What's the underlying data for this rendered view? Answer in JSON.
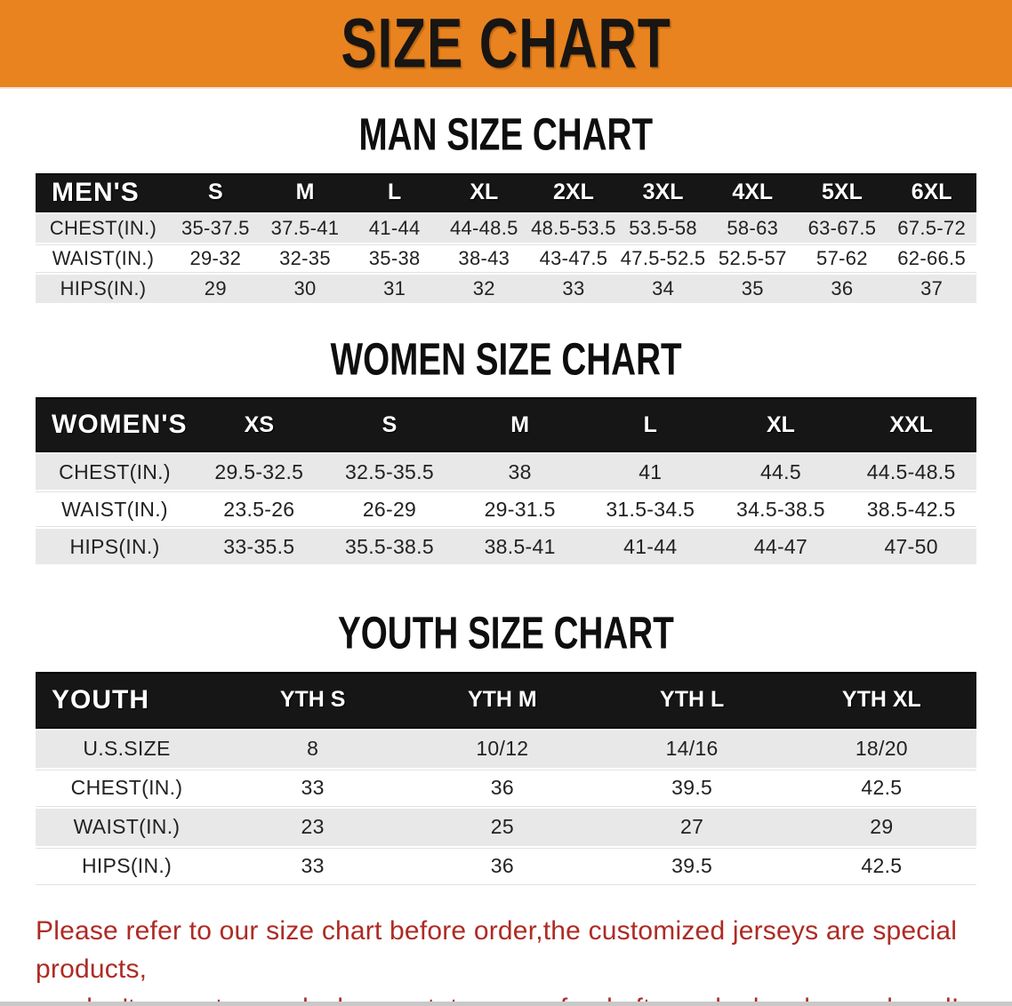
{
  "banner": {
    "title": "SIZE CHART",
    "bg_color": "#E8831F",
    "text_color": "#181512"
  },
  "sections": [
    {
      "heading": "MAN SIZE CHART",
      "table": {
        "label": "MEN'S",
        "columns": [
          "S",
          "M",
          "L",
          "XL",
          "2XL",
          "3XL",
          "4XL",
          "5XL",
          "6XL"
        ],
        "rows": [
          {
            "label": "CHEST(IN.)",
            "values": [
              "35-37.5",
              "37.5-41",
              "41-44",
              "44-48.5",
              "48.5-53.5",
              "53.5-58",
              "58-63",
              "63-67.5",
              "67.5-72"
            ]
          },
          {
            "label": "WAIST(IN.)",
            "values": [
              "29-32",
              "32-35",
              "35-38",
              "38-43",
              "43-47.5",
              "47.5-52.5",
              "52.5-57",
              "57-62",
              "62-66.5"
            ]
          },
          {
            "label": "HIPS(IN.)",
            "values": [
              "29",
              "30",
              "31",
              "32",
              "33",
              "34",
              "35",
              "36",
              "37"
            ]
          }
        ]
      }
    },
    {
      "heading": "WOMEN SIZE CHART",
      "table": {
        "label": "WOMEN'S",
        "columns": [
          "XS",
          "S",
          "M",
          "L",
          "XL",
          "XXL"
        ],
        "rows": [
          {
            "label": "CHEST(IN.)",
            "values": [
              "29.5-32.5",
              "32.5-35.5",
              "38",
              "41",
              "44.5",
              "44.5-48.5"
            ]
          },
          {
            "label": "WAIST(IN.)",
            "values": [
              "23.5-26",
              "26-29",
              "29-31.5",
              "31.5-34.5",
              "34.5-38.5",
              "38.5-42.5"
            ]
          },
          {
            "label": "HIPS(IN.)",
            "values": [
              "33-35.5",
              "35.5-38.5",
              "38.5-41",
              "41-44",
              "44-47",
              "47-50"
            ]
          }
        ]
      }
    },
    {
      "heading": "YOUTH SIZE CHART",
      "table": {
        "label": "YOUTH",
        "columns": [
          "YTH S",
          "YTH M",
          "YTH L",
          "YTH XL"
        ],
        "rows": [
          {
            "label": "U.S.SIZE",
            "values": [
              "8",
              "10/12",
              "14/16",
              "18/20"
            ]
          },
          {
            "label": "CHEST(IN.)",
            "values": [
              "33",
              "36",
              "39.5",
              "42.5"
            ]
          },
          {
            "label": "WAIST(IN.)",
            "values": [
              "23",
              "25",
              "27",
              "29"
            ]
          },
          {
            "label": "HIPS(IN.)",
            "values": [
              "33",
              "36",
              "39.5",
              "42.5"
            ]
          }
        ]
      }
    }
  ],
  "footer": {
    "line1": "Please refer to our size chart before order,the customized jerseys are special products,",
    "line2": "we don't accept cancel, change, teturn or refund after order has been placed!",
    "text_color": "#AE2B24"
  }
}
